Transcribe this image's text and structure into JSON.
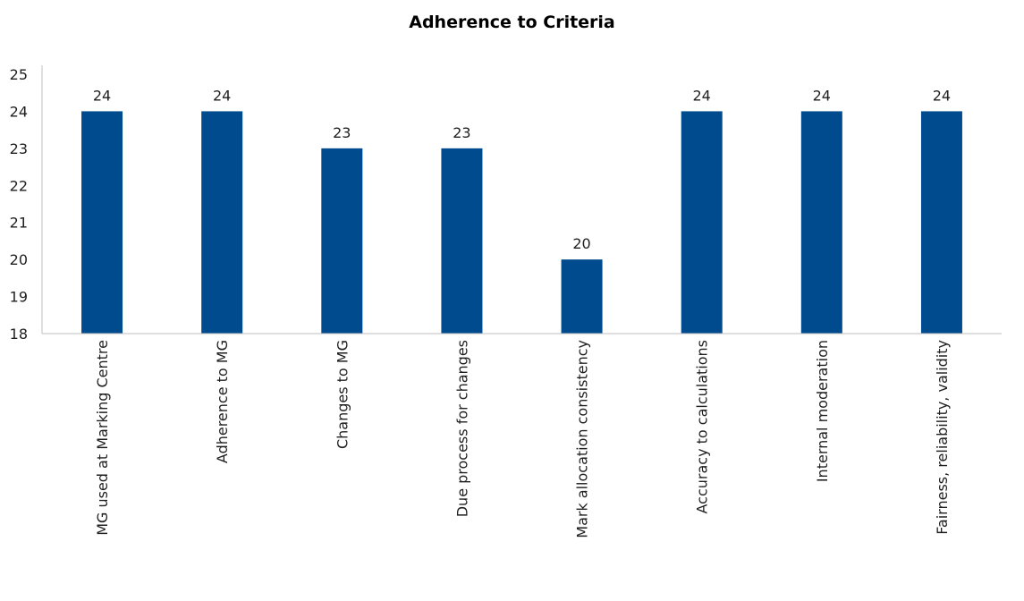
{
  "chart_data": {
    "type": "bar",
    "title": "Adherence to Criteria",
    "xlabel": "",
    "ylabel": "",
    "categories": [
      "MG used at Marking Centre",
      "Adherence to MG",
      "Changes to MG",
      "Due process for changes",
      "Mark allocation consistency",
      "Accuracy to calculations",
      "Internal moderation",
      "Fairness, reliability, validity"
    ],
    "values": [
      24,
      24,
      23,
      23,
      20,
      24,
      24,
      24
    ],
    "ylim": [
      18,
      25
    ],
    "yticks": [
      18,
      19,
      20,
      21,
      22,
      23,
      24,
      25
    ],
    "data_labels": true,
    "grid": false,
    "legend": "none",
    "bar_color": "#004B8D"
  }
}
